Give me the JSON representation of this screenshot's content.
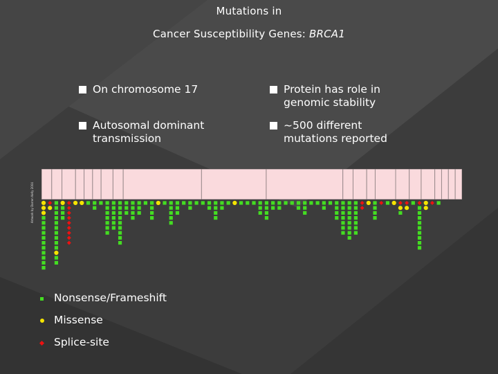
{
  "slide": {
    "title_line1": "Mutations in",
    "title_line2_prefix": "Cancer Susceptibility Genes: ",
    "title_line2_gene": "BRCA1",
    "credit": "Artwork by Darren Kelly 2004"
  },
  "bullets": [
    {
      "text": "On chromosome 17"
    },
    {
      "text": "Protein has role in\ngenomic stability"
    },
    {
      "text": "Autosomal dominant\ntransmission"
    },
    {
      "text": "~500 different\nmutations reported"
    }
  ],
  "colors": {
    "background": "#3a3a3a",
    "gene_bar": "#fadadd",
    "nonsense": "#44dd22",
    "missense": "#f5e400",
    "splice": "#ee1111"
  },
  "legend": [
    {
      "label": "Nonsense/Frameshift",
      "marker": "square",
      "color": "#44dd22"
    },
    {
      "label": "Missense",
      "marker": "circle",
      "color": "#f5e400"
    },
    {
      "label": "Splice-site",
      "marker": "diamond",
      "color": "#ee1111"
    }
  ],
  "gene_map": {
    "exon_count": 22,
    "columns": [
      [
        "m",
        "m",
        "m",
        "n",
        "n",
        "n",
        "n",
        "n",
        "n",
        "n",
        "n",
        "n",
        "n",
        "n"
      ],
      [
        "s",
        "m"
      ],
      [
        "n",
        "n",
        "n",
        "n",
        "n",
        "n",
        "n",
        "n",
        "n",
        "n",
        "m",
        "n",
        "n"
      ],
      [
        "m",
        "n",
        "n",
        "n"
      ],
      [
        "s",
        "s",
        "s",
        "s",
        "s",
        "s",
        "s",
        "s",
        "s"
      ],
      [
        "m"
      ],
      [
        "m"
      ],
      [
        "n"
      ],
      [
        "n",
        "n"
      ],
      [
        "n"
      ],
      [
        "n",
        "n",
        "n",
        "n",
        "n",
        "n",
        "n"
      ],
      [
        "n",
        "n",
        "n",
        "n",
        "n",
        "n"
      ],
      [
        "n",
        "n",
        "n",
        "n",
        "n",
        "n",
        "n",
        "n",
        "n"
      ],
      [
        "n",
        "n",
        "n"
      ],
      [
        "n",
        "n",
        "n",
        "n"
      ],
      [
        "n",
        "n",
        "n"
      ],
      [
        "n"
      ],
      [
        "n",
        "n",
        "n",
        "n"
      ],
      [
        "m"
      ],
      [
        "n"
      ],
      [
        "n",
        "n",
        "n",
        "n",
        "n"
      ],
      [
        "n",
        "n",
        "n"
      ],
      [
        "n"
      ],
      [
        "n",
        "n"
      ],
      [
        "n"
      ],
      [
        "n"
      ],
      [
        "n",
        "n"
      ],
      [
        "n",
        "n",
        "n",
        "n"
      ],
      [
        "n",
        "n"
      ],
      [
        "n"
      ],
      [
        "m"
      ],
      [
        "n"
      ],
      [
        "n"
      ],
      [
        "n"
      ],
      [
        "n",
        "n",
        "n"
      ],
      [
        "n",
        "n",
        "n",
        "n"
      ],
      [
        "n",
        "n"
      ],
      [
        "n",
        "n"
      ],
      [
        "n"
      ],
      [
        "n"
      ],
      [
        "n",
        "n"
      ],
      [
        "n",
        "n",
        "n"
      ],
      [
        "n"
      ],
      [
        "n"
      ],
      [
        "n",
        "n"
      ],
      [
        "n"
      ],
      [
        "n",
        "n",
        "n",
        "n"
      ],
      [
        "n",
        "n",
        "n",
        "n",
        "n",
        "n",
        "n"
      ],
      [
        "n",
        "n",
        "n",
        "n",
        "n",
        "n",
        "n",
        "n"
      ],
      [
        "n",
        "n",
        "n",
        "n",
        "n",
        "n",
        "n"
      ],
      [
        "s",
        "s"
      ],
      [
        "m"
      ],
      [
        "n",
        "n",
        "n",
        "n"
      ],
      [
        "s"
      ],
      [
        "n"
      ],
      [
        "m"
      ],
      [
        "s",
        "m",
        "n"
      ],
      [
        "s",
        "m"
      ],
      [
        "n"
      ],
      [
        "s",
        "n",
        "n",
        "n",
        "n",
        "n",
        "n",
        "n",
        "n",
        "n"
      ],
      [
        "m",
        "m"
      ],
      [
        "s"
      ],
      [
        "n"
      ]
    ]
  }
}
